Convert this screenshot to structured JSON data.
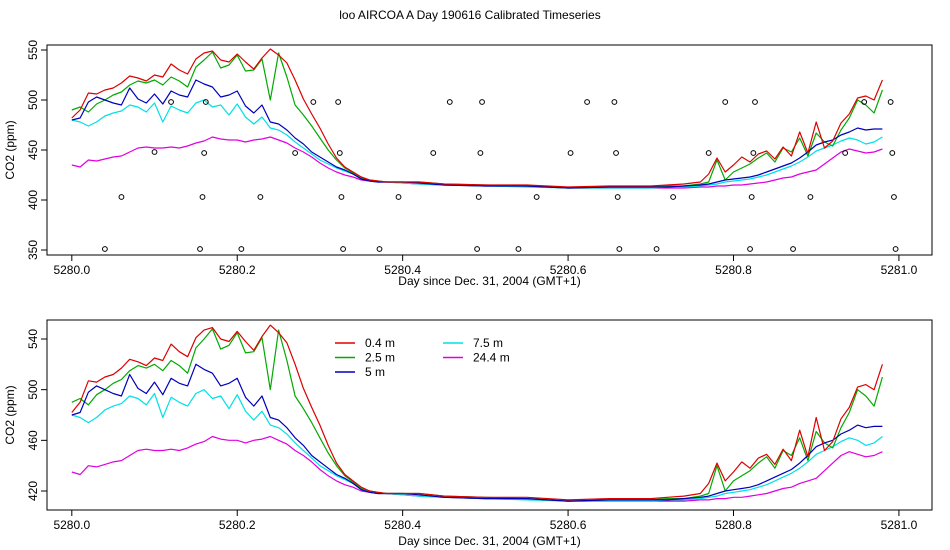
{
  "page_title": "loo AIRCOA A  Day 190616  Calibrated Timeseries",
  "colors": {
    "0.4 m": "#dd0000",
    "2.5 m": "#00aa00",
    "5 m": "#0000bb",
    "7.5 m": "#00e0e8",
    "24.4 m": "#e000e0",
    "points": "#000000"
  },
  "chart_data": [
    {
      "type": "line",
      "panel": "top",
      "xlabel": "Day since Dec. 31, 2004 (GMT+1)",
      "ylabel": "CO2 (ppm)",
      "xlim": [
        5279.97,
        5281.04
      ],
      "ylim": [
        345,
        555
      ],
      "xticks": [
        5280.0,
        5280.2,
        5280.4,
        5280.6,
        5280.8,
        5281.0
      ],
      "xtick_labels": [
        "5280.0",
        "5280.2",
        "5280.4",
        "5280.6",
        "5280.8",
        "5281.0"
      ],
      "yticks": [
        350,
        400,
        450,
        500,
        550
      ],
      "ytick_labels": [
        "350",
        "400",
        "450",
        "500",
        "550"
      ],
      "grid": false,
      "legend": "none",
      "scatter": {
        "name": "",
        "points": [
          [
            5280.04,
            351
          ],
          [
            5280.06,
            403
          ],
          [
            5280.1,
            448
          ],
          [
            5280.12,
            498
          ],
          [
            5280.155,
            351
          ],
          [
            5280.158,
            403
          ],
          [
            5280.16,
            447
          ],
          [
            5280.162,
            498
          ],
          [
            5280.205,
            351
          ],
          [
            5280.228,
            403
          ],
          [
            5280.27,
            447
          ],
          [
            5280.292,
            498
          ],
          [
            5280.322,
            498
          ],
          [
            5280.324,
            447
          ],
          [
            5280.326,
            403
          ],
          [
            5280.328,
            351
          ],
          [
            5280.372,
            351
          ],
          [
            5280.395,
            403
          ],
          [
            5280.437,
            447
          ],
          [
            5280.457,
            498
          ],
          [
            5280.49,
            351
          ],
          [
            5280.492,
            403
          ],
          [
            5280.494,
            447
          ],
          [
            5280.496,
            498
          ],
          [
            5280.54,
            351
          ],
          [
            5280.562,
            403
          ],
          [
            5280.603,
            447
          ],
          [
            5280.623,
            498
          ],
          [
            5280.656,
            498
          ],
          [
            5280.658,
            447
          ],
          [
            5280.66,
            403
          ],
          [
            5280.662,
            351
          ],
          [
            5280.707,
            351
          ],
          [
            5280.727,
            403
          ],
          [
            5280.77,
            447
          ],
          [
            5280.79,
            498
          ],
          [
            5280.82,
            351
          ],
          [
            5280.822,
            403
          ],
          [
            5280.824,
            447
          ],
          [
            5280.826,
            498
          ],
          [
            5280.872,
            351
          ],
          [
            5280.893,
            403
          ],
          [
            5280.935,
            447
          ],
          [
            5280.958,
            498
          ],
          [
            5280.99,
            498
          ],
          [
            5280.992,
            447
          ],
          [
            5280.994,
            403
          ],
          [
            5280.996,
            351
          ]
        ]
      }
    },
    {
      "type": "line",
      "panel": "bottom",
      "xlabel": "Day since Dec. 31, 2004 (GMT+1)",
      "ylabel": "CO2 (ppm)",
      "xlim": [
        5279.97,
        5281.04
      ],
      "ylim": [
        405,
        555
      ],
      "xticks": [
        5280.0,
        5280.2,
        5280.4,
        5280.6,
        5280.8,
        5281.0
      ],
      "xtick_labels": [
        "5280.0",
        "5280.2",
        "5280.4",
        "5280.6",
        "5280.8",
        "5281.0"
      ],
      "yticks": [
        420,
        460,
        500,
        540
      ],
      "ytick_labels": [
        "420",
        "460",
        "500",
        "540"
      ],
      "grid": false,
      "legend": "top-left",
      "legend_entries": [
        {
          "name": "0.4 m",
          "col": 0,
          "row": 0
        },
        {
          "name": "2.5 m",
          "col": 0,
          "row": 1
        },
        {
          "name": "5 m",
          "col": 0,
          "row": 2
        },
        {
          "name": "7.5 m",
          "col": 1,
          "row": 0
        },
        {
          "name": "24.4 m",
          "col": 1,
          "row": 1
        }
      ]
    }
  ],
  "series": [
    {
      "name": "0.4 m",
      "x": [
        5280.0,
        5280.01,
        5280.02,
        5280.03,
        5280.04,
        5280.05,
        5280.06,
        5280.07,
        5280.08,
        5280.09,
        5280.1,
        5280.11,
        5280.12,
        5280.13,
        5280.14,
        5280.15,
        5280.16,
        5280.17,
        5280.18,
        5280.19,
        5280.2,
        5280.21,
        5280.22,
        5280.23,
        5280.24,
        5280.25,
        5280.26,
        5280.27,
        5280.28,
        5280.29,
        5280.3,
        5280.31,
        5280.32,
        5280.33,
        5280.34,
        5280.35,
        5280.36,
        5280.37,
        5280.38,
        5280.4,
        5280.42,
        5280.45,
        5280.5,
        5280.55,
        5280.6,
        5280.65,
        5280.7,
        5280.72,
        5280.74,
        5280.76,
        5280.77,
        5280.78,
        5280.79,
        5280.8,
        5280.81,
        5280.82,
        5280.83,
        5280.84,
        5280.85,
        5280.86,
        5280.87,
        5280.88,
        5280.89,
        5280.9,
        5280.91,
        5280.92,
        5280.93,
        5280.94,
        5280.95,
        5280.96,
        5280.97,
        5280.98
      ],
      "y": [
        482,
        490,
        507,
        506,
        510,
        512,
        517,
        524,
        522,
        519,
        525,
        523,
        536,
        530,
        526,
        541,
        547,
        549,
        540,
        538,
        546,
        538,
        531,
        542,
        551,
        545,
        537,
        520,
        501,
        486,
        472,
        456,
        442,
        433,
        428,
        423,
        420,
        419,
        418,
        418,
        418,
        416,
        415,
        415,
        413,
        414,
        414,
        415,
        416,
        418,
        426,
        442,
        428,
        435,
        443,
        438,
        446,
        449,
        441,
        453,
        444,
        468,
        447,
        478,
        452,
        459,
        477,
        486,
        502,
        504,
        500,
        520
      ]
    },
    {
      "name": "2.5 m",
      "x": [
        5280.0,
        5280.01,
        5280.02,
        5280.03,
        5280.04,
        5280.05,
        5280.06,
        5280.07,
        5280.08,
        5280.09,
        5280.1,
        5280.11,
        5280.12,
        5280.13,
        5280.14,
        5280.15,
        5280.16,
        5280.17,
        5280.18,
        5280.19,
        5280.2,
        5280.21,
        5280.22,
        5280.23,
        5280.24,
        5280.25,
        5280.26,
        5280.27,
        5280.28,
        5280.29,
        5280.3,
        5280.31,
        5280.32,
        5280.33,
        5280.34,
        5280.35,
        5280.36,
        5280.37,
        5280.38,
        5280.4,
        5280.42,
        5280.45,
        5280.5,
        5280.55,
        5280.6,
        5280.65,
        5280.7,
        5280.72,
        5280.74,
        5280.76,
        5280.77,
        5280.78,
        5280.79,
        5280.8,
        5280.81,
        5280.82,
        5280.83,
        5280.84,
        5280.85,
        5280.86,
        5280.87,
        5280.88,
        5280.89,
        5280.9,
        5280.91,
        5280.92,
        5280.93,
        5280.94,
        5280.95,
        5280.96,
        5280.97,
        5280.98
      ],
      "y": [
        490,
        493,
        488,
        496,
        500,
        505,
        508,
        515,
        519,
        517,
        520,
        515,
        523,
        519,
        513,
        533,
        540,
        548,
        532,
        535,
        545,
        529,
        530,
        541,
        500,
        547,
        523,
        495,
        485,
        474,
        462,
        450,
        440,
        432,
        427,
        422,
        420,
        419,
        418,
        418,
        418,
        416,
        415,
        414,
        412,
        413,
        413,
        414,
        414,
        416,
        418,
        440,
        420,
        428,
        432,
        436,
        442,
        447,
        438,
        452,
        448,
        462,
        444,
        467,
        458,
        454,
        470,
        482,
        500,
        495,
        487,
        510
      ]
    },
    {
      "name": "5 m",
      "x": [
        5280.0,
        5280.01,
        5280.02,
        5280.03,
        5280.04,
        5280.05,
        5280.06,
        5280.07,
        5280.08,
        5280.09,
        5280.1,
        5280.11,
        5280.12,
        5280.13,
        5280.14,
        5280.15,
        5280.16,
        5280.17,
        5280.18,
        5280.19,
        5280.2,
        5280.21,
        5280.22,
        5280.23,
        5280.24,
        5280.25,
        5280.26,
        5280.27,
        5280.28,
        5280.29,
        5280.3,
        5280.31,
        5280.32,
        5280.33,
        5280.34,
        5280.35,
        5280.36,
        5280.37,
        5280.38,
        5280.4,
        5280.42,
        5280.45,
        5280.5,
        5280.55,
        5280.6,
        5280.65,
        5280.7,
        5280.72,
        5280.74,
        5280.76,
        5280.77,
        5280.78,
        5280.79,
        5280.8,
        5280.81,
        5280.82,
        5280.83,
        5280.84,
        5280.85,
        5280.86,
        5280.87,
        5280.88,
        5280.89,
        5280.9,
        5280.91,
        5280.92,
        5280.93,
        5280.94,
        5280.95,
        5280.96,
        5280.97,
        5280.98
      ],
      "y": [
        480,
        482,
        498,
        503,
        500,
        497,
        495,
        512,
        501,
        497,
        506,
        496,
        509,
        505,
        503,
        520,
        516,
        513,
        503,
        505,
        509,
        494,
        487,
        495,
        478,
        476,
        470,
        462,
        456,
        448,
        443,
        438,
        433,
        430,
        426,
        421,
        419,
        418,
        418,
        418,
        417,
        415,
        414,
        414,
        412,
        413,
        413,
        413,
        414,
        415,
        416,
        418,
        420,
        421,
        422,
        423,
        425,
        428,
        431,
        434,
        437,
        442,
        448,
        455,
        458,
        460,
        465,
        468,
        472,
        470,
        471,
        471
      ]
    },
    {
      "name": "7.5 m",
      "x": [
        5280.0,
        5280.01,
        5280.02,
        5280.03,
        5280.04,
        5280.05,
        5280.06,
        5280.07,
        5280.08,
        5280.09,
        5280.1,
        5280.11,
        5280.12,
        5280.13,
        5280.14,
        5280.15,
        5280.16,
        5280.17,
        5280.18,
        5280.19,
        5280.2,
        5280.21,
        5280.22,
        5280.23,
        5280.24,
        5280.25,
        5280.26,
        5280.27,
        5280.28,
        5280.29,
        5280.3,
        5280.31,
        5280.32,
        5280.33,
        5280.34,
        5280.35,
        5280.36,
        5280.37,
        5280.38,
        5280.4,
        5280.42,
        5280.45,
        5280.5,
        5280.55,
        5280.6,
        5280.65,
        5280.7,
        5280.72,
        5280.74,
        5280.76,
        5280.77,
        5280.78,
        5280.79,
        5280.8,
        5280.81,
        5280.82,
        5280.83,
        5280.84,
        5280.85,
        5280.86,
        5280.87,
        5280.88,
        5280.89,
        5280.9,
        5280.91,
        5280.92,
        5280.93,
        5280.94,
        5280.95,
        5280.96,
        5280.97,
        5280.98
      ],
      "y": [
        480,
        478,
        474,
        478,
        484,
        487,
        489,
        495,
        493,
        488,
        497,
        478,
        494,
        490,
        487,
        497,
        500,
        493,
        495,
        485,
        496,
        483,
        476,
        483,
        472,
        470,
        465,
        458,
        452,
        446,
        440,
        436,
        432,
        429,
        426,
        421,
        419,
        418,
        418,
        417,
        416,
        415,
        414,
        413,
        412,
        412,
        412,
        413,
        413,
        414,
        415,
        416,
        418,
        419,
        420,
        421,
        423,
        425,
        428,
        431,
        434,
        438,
        443,
        449,
        452,
        455,
        459,
        462,
        460,
        456,
        458,
        463
      ]
    },
    {
      "name": "24.4 m",
      "x": [
        5280.0,
        5280.01,
        5280.02,
        5280.03,
        5280.04,
        5280.05,
        5280.06,
        5280.07,
        5280.08,
        5280.09,
        5280.1,
        5280.11,
        5280.12,
        5280.13,
        5280.14,
        5280.15,
        5280.16,
        5280.17,
        5280.18,
        5280.19,
        5280.2,
        5280.21,
        5280.22,
        5280.23,
        5280.24,
        5280.25,
        5280.26,
        5280.27,
        5280.28,
        5280.29,
        5280.3,
        5280.31,
        5280.32,
        5280.33,
        5280.34,
        5280.35,
        5280.36,
        5280.37,
        5280.38,
        5280.4,
        5280.42,
        5280.45,
        5280.5,
        5280.55,
        5280.6,
        5280.65,
        5280.7,
        5280.72,
        5280.74,
        5280.76,
        5280.77,
        5280.78,
        5280.79,
        5280.8,
        5280.81,
        5280.82,
        5280.83,
        5280.84,
        5280.85,
        5280.86,
        5280.87,
        5280.88,
        5280.89,
        5280.9,
        5280.91,
        5280.92,
        5280.93,
        5280.94,
        5280.95,
        5280.96,
        5280.97,
        5280.98
      ],
      "y": [
        435,
        433,
        440,
        439,
        441,
        443,
        444,
        448,
        452,
        453,
        452,
        452,
        453,
        452,
        454,
        457,
        459,
        463,
        461,
        460,
        460,
        458,
        460,
        461,
        463,
        460,
        457,
        452,
        448,
        443,
        437,
        432,
        428,
        425,
        423,
        420,
        419,
        418,
        418,
        417,
        416,
        415,
        414,
        414,
        412,
        412,
        412,
        412,
        412,
        413,
        413,
        414,
        414,
        415,
        415,
        416,
        417,
        418,
        420,
        422,
        423,
        426,
        428,
        430,
        436,
        442,
        448,
        451,
        449,
        447,
        448,
        451
      ]
    }
  ]
}
